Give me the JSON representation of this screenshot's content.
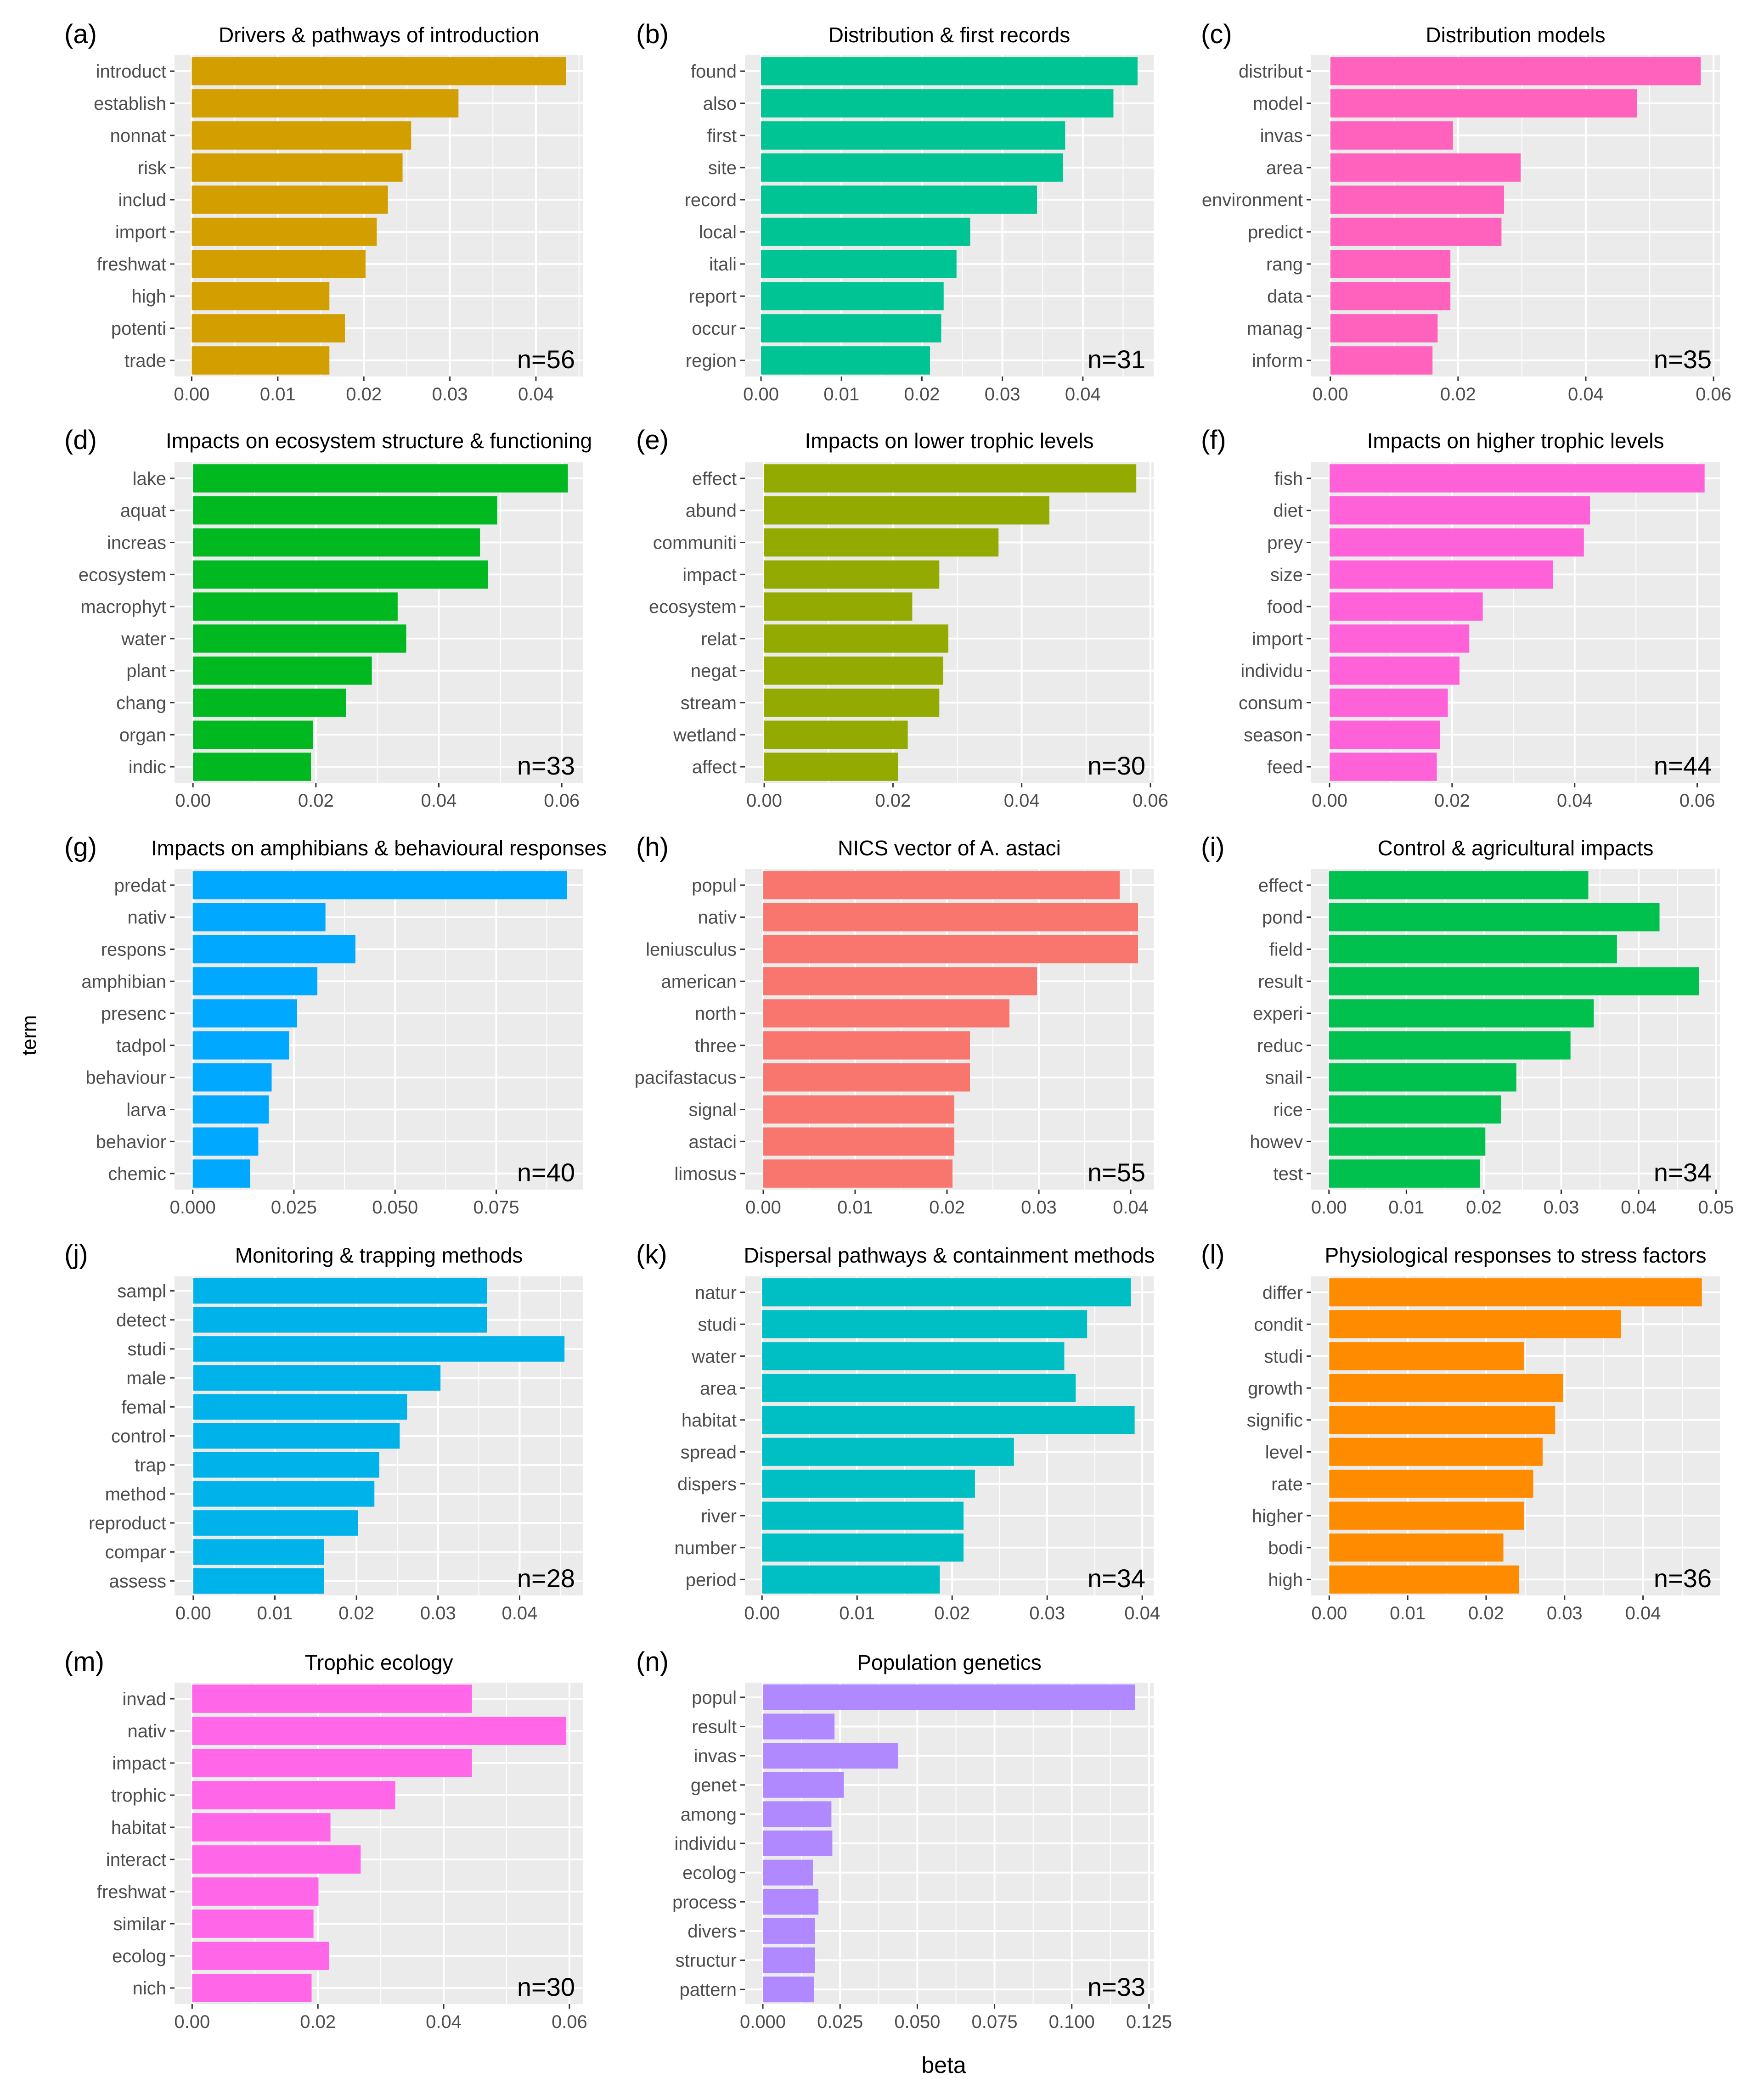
{
  "figure": {
    "ylabel": "term",
    "xlabel": "beta"
  },
  "colors": {
    "panel_bg": "#EBEBEB",
    "grid": "#FFFFFF",
    "tick": "#333333",
    "text": "#4D4D4D",
    "title": "#000000"
  },
  "chart_data": [
    {
      "type": "bar",
      "orientation": "horizontal",
      "panel": "(a)",
      "title": "Drivers & pathways of introduction",
      "n": "n=56",
      "color": "#D39F00",
      "categories": [
        "introduct",
        "establish",
        "nonnat",
        "risk",
        "includ",
        "import",
        "freshwat",
        "high",
        "potenti",
        "trade"
      ],
      "values": [
        0.0435,
        0.031,
        0.0255,
        0.0245,
        0.0228,
        0.0215,
        0.0202,
        0.016,
        0.0178,
        0.016
      ],
      "xlim": [
        -0.002,
        0.0455
      ],
      "xticks": [
        0,
        0.01,
        0.02,
        0.03,
        0.04
      ],
      "xtick_labels": [
        "0.00",
        "0.01",
        "0.02",
        "0.03",
        "0.04"
      ]
    },
    {
      "type": "bar",
      "orientation": "horizontal",
      "panel": "(b)",
      "title": "Distribution & first records",
      "n": "n=31",
      "color": "#00C493",
      "categories": [
        "found",
        "also",
        "first",
        "site",
        "record",
        "local",
        "itali",
        "report",
        "occur",
        "region"
      ],
      "values": [
        0.0468,
        0.0438,
        0.0378,
        0.0375,
        0.0343,
        0.026,
        0.0243,
        0.0227,
        0.0224,
        0.021
      ],
      "xlim": [
        -0.002,
        0.0488
      ],
      "xticks": [
        0,
        0.01,
        0.02,
        0.03,
        0.04
      ],
      "xtick_labels": [
        "0.00",
        "0.01",
        "0.02",
        "0.03",
        "0.04"
      ]
    },
    {
      "type": "bar",
      "orientation": "horizontal",
      "panel": "(c)",
      "title": "Distribution models",
      "n": "n=35",
      "color": "#FF62BC",
      "categories": [
        "distribut",
        "model",
        "invas",
        "area",
        "environment",
        "predict",
        "rang",
        "data",
        "manag",
        "inform"
      ],
      "values": [
        0.058,
        0.048,
        0.0192,
        0.0298,
        0.0272,
        0.0268,
        0.0188,
        0.0188,
        0.0168,
        0.016
      ],
      "xlim": [
        -0.003,
        0.061
      ],
      "xticks": [
        0,
        0.02,
        0.04,
        0.06
      ],
      "xtick_labels": [
        "0.00",
        "0.02",
        "0.04",
        "0.06"
      ]
    },
    {
      "type": "bar",
      "orientation": "horizontal",
      "panel": "(d)",
      "title": "Impacts on ecosystem structure & functioning",
      "n": "n=33",
      "color": "#00B81F",
      "categories": [
        "lake",
        "aquat",
        "increas",
        "ecosystem",
        "macrophyt",
        "water",
        "plant",
        "chang",
        "organ",
        "indic"
      ],
      "values": [
        0.061,
        0.0495,
        0.0467,
        0.048,
        0.0333,
        0.0347,
        0.0291,
        0.0249,
        0.0195,
        0.0192
      ],
      "xlim": [
        -0.003,
        0.0635
      ],
      "xticks": [
        0,
        0.02,
        0.04,
        0.06
      ],
      "xtick_labels": [
        "0.00",
        "0.02",
        "0.04",
        "0.06"
      ]
    },
    {
      "type": "bar",
      "orientation": "horizontal",
      "panel": "(e)",
      "title": "Impacts on lower trophic levels",
      "n": "n=30",
      "color": "#93AA00",
      "categories": [
        "effect",
        "abund",
        "communiti",
        "impact",
        "ecosystem",
        "relat",
        "negat",
        "stream",
        "wetland",
        "affect"
      ],
      "values": [
        0.0578,
        0.0443,
        0.0364,
        0.0272,
        0.023,
        0.0286,
        0.0278,
        0.0272,
        0.0223,
        0.0208
      ],
      "xlim": [
        -0.003,
        0.0605
      ],
      "xticks": [
        0,
        0.02,
        0.04,
        0.06
      ],
      "xtick_labels": [
        "0.00",
        "0.02",
        "0.04",
        "0.06"
      ]
    },
    {
      "type": "bar",
      "orientation": "horizontal",
      "panel": "(f)",
      "title": "Impacts on higher trophic levels",
      "n": "n=44",
      "color": "#FF61D8",
      "categories": [
        "fish",
        "diet",
        "prey",
        "size",
        "food",
        "import",
        "individu",
        "consum",
        "season",
        "feed"
      ],
      "values": [
        0.0612,
        0.0425,
        0.0415,
        0.0365,
        0.025,
        0.0228,
        0.0212,
        0.0193,
        0.018,
        0.0175
      ],
      "xlim": [
        -0.003,
        0.0637
      ],
      "xticks": [
        0,
        0.02,
        0.04,
        0.06
      ],
      "xtick_labels": [
        "0.00",
        "0.02",
        "0.04",
        "0.06"
      ]
    },
    {
      "type": "bar",
      "orientation": "horizontal",
      "panel": "(g)",
      "title": "Impacts on amphibians & behavioural responses",
      "n": "n=40",
      "color": "#00A9FF",
      "categories": [
        "predat",
        "nativ",
        "respons",
        "amphibian",
        "presenc",
        "tadpol",
        "behaviour",
        "larva",
        "behavior",
        "chemic"
      ],
      "values": [
        0.0925,
        0.0328,
        0.0402,
        0.0308,
        0.0258,
        0.0238,
        0.0195,
        0.0188,
        0.0162,
        0.0142
      ],
      "xlim": [
        -0.0045,
        0.0965
      ],
      "xticks": [
        0,
        0.025,
        0.05,
        0.075
      ],
      "xtick_labels": [
        "0.000",
        "0.025",
        "0.050",
        "0.075"
      ]
    },
    {
      "type": "bar",
      "orientation": "horizontal",
      "panel": "(h)",
      "title": "NICS vector of A. astaci",
      "n": "n=55",
      "color": "#F8766D",
      "categories": [
        "popul",
        "nativ",
        "leniusculus",
        "american",
        "north",
        "three",
        "pacifastacus",
        "signal",
        "astaci",
        "limosus"
      ],
      "values": [
        0.0388,
        0.0408,
        0.0408,
        0.0298,
        0.0268,
        0.0225,
        0.0225,
        0.0208,
        0.0208,
        0.0206
      ],
      "xlim": [
        -0.002,
        0.0425
      ],
      "xticks": [
        0,
        0.01,
        0.02,
        0.03,
        0.04
      ],
      "xtick_labels": [
        "0.00",
        "0.01",
        "0.02",
        "0.03",
        "0.04"
      ]
    },
    {
      "type": "bar",
      "orientation": "horizontal",
      "panel": "(i)",
      "title": "Control & agricultural impacts",
      "n": "n=34",
      "color": "#00C14D",
      "categories": [
        "effect",
        "pond",
        "field",
        "result",
        "experi",
        "reduc",
        "snail",
        "rice",
        "howev",
        "test"
      ],
      "values": [
        0.0335,
        0.0427,
        0.0372,
        0.0478,
        0.0342,
        0.0312,
        0.0242,
        0.0222,
        0.0202,
        0.0195
      ],
      "xlim": [
        -0.0023,
        0.0505
      ],
      "xticks": [
        0,
        0.01,
        0.02,
        0.03,
        0.04,
        0.05
      ],
      "xtick_labels": [
        "0.00",
        "0.01",
        "0.02",
        "0.03",
        "0.04",
        "0.05"
      ]
    },
    {
      "type": "bar",
      "orientation": "horizontal",
      "panel": "(j)",
      "title": "Monitoring & trapping methods",
      "n": "n=28",
      "color": "#00B2EA",
      "categories": [
        "sampl",
        "detect",
        "studi",
        "male",
        "femal",
        "control",
        "trap",
        "method",
        "reproduct",
        "compar",
        "assess"
      ],
      "values": [
        0.036,
        0.036,
        0.0455,
        0.0303,
        0.0262,
        0.0253,
        0.0228,
        0.0222,
        0.0202,
        0.016,
        0.016
      ],
      "xlim": [
        -0.0023,
        0.0478
      ],
      "xticks": [
        0,
        0.01,
        0.02,
        0.03,
        0.04
      ],
      "xtick_labels": [
        "0.00",
        "0.01",
        "0.02",
        "0.03",
        "0.04"
      ]
    },
    {
      "type": "bar",
      "orientation": "horizontal",
      "panel": "(k)",
      "title": "Dispersal pathways & containment methods",
      "n": "n=34",
      "color": "#00BFC4",
      "categories": [
        "natur",
        "studi",
        "water",
        "area",
        "habitat",
        "spread",
        "dispers",
        "river",
        "number",
        "period"
      ],
      "values": [
        0.0388,
        0.0342,
        0.0318,
        0.033,
        0.0392,
        0.0265,
        0.0224,
        0.0212,
        0.0212,
        0.0187
      ],
      "xlim": [
        -0.0018,
        0.0412
      ],
      "xticks": [
        0,
        0.01,
        0.02,
        0.03,
        0.04
      ],
      "xtick_labels": [
        "0.00",
        "0.01",
        "0.02",
        "0.03",
        "0.04"
      ]
    },
    {
      "type": "bar",
      "orientation": "horizontal",
      "panel": "(l)",
      "title": "Physiological responses to stress factors",
      "n": "n=36",
      "color": "#FF8C00",
      "categories": [
        "differ",
        "condit",
        "studi",
        "growth",
        "signific",
        "level",
        "rate",
        "higher",
        "bodi",
        "high"
      ],
      "values": [
        0.0475,
        0.0372,
        0.0248,
        0.0298,
        0.0288,
        0.0272,
        0.026,
        0.0248,
        0.0222,
        0.0242
      ],
      "xlim": [
        -0.0023,
        0.0498
      ],
      "xticks": [
        0,
        0.01,
        0.02,
        0.03,
        0.04
      ],
      "xtick_labels": [
        "0.00",
        "0.01",
        "0.02",
        "0.03",
        "0.04"
      ]
    },
    {
      "type": "bar",
      "orientation": "horizontal",
      "panel": "(m)",
      "title": "Trophic ecology",
      "n": "n=30",
      "color": "#FF66E8",
      "categories": [
        "invad",
        "nativ",
        "impact",
        "trophic",
        "habitat",
        "interact",
        "freshwat",
        "similar",
        "ecolog",
        "nich"
      ],
      "values": [
        0.0445,
        0.0595,
        0.0445,
        0.0323,
        0.022,
        0.0268,
        0.0201,
        0.0193,
        0.0218,
        0.019
      ],
      "xlim": [
        -0.0028,
        0.0622
      ],
      "xticks": [
        0,
        0.02,
        0.04,
        0.06
      ],
      "xtick_labels": [
        "0.00",
        "0.02",
        "0.04",
        "0.06"
      ]
    },
    {
      "type": "bar",
      "orientation": "horizontal",
      "panel": "(n)",
      "title": "Population genetics",
      "n": "n=33",
      "color": "#B088FF",
      "categories": [
        "popul",
        "result",
        "invas",
        "genet",
        "among",
        "individu",
        "ecolog",
        "process",
        "divers",
        "structur",
        "pattern"
      ],
      "values": [
        0.1205,
        0.0232,
        0.0438,
        0.0262,
        0.0222,
        0.0225,
        0.0162,
        0.018,
        0.0168,
        0.0168,
        0.0165
      ],
      "xlim": [
        -0.0058,
        0.1265
      ],
      "xticks": [
        0,
        0.025,
        0.05,
        0.075,
        0.1,
        0.125
      ],
      "xtick_labels": [
        "0.000",
        "0.025",
        "0.050",
        "0.075",
        "0.100",
        "0.125"
      ]
    }
  ]
}
